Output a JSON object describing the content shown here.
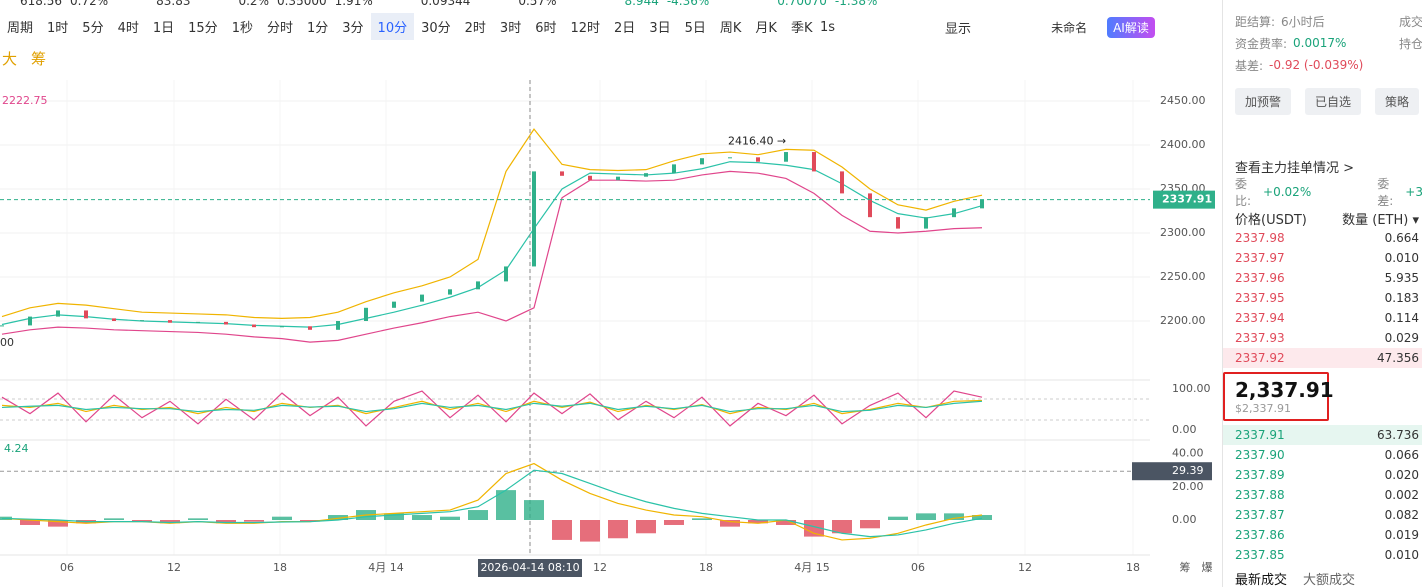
{
  "top_row": [
    "618.56",
    "0.72%",
    "83.83",
    "0.2%",
    "0.35000",
    "1.91%",
    "0.09344",
    "0.57%",
    "8.944",
    "-4.36%",
    "0.70070",
    "-1.38%"
  ],
  "toolbar": {
    "period": "周期",
    "intervals": [
      "1时",
      "5分",
      "4时",
      "1日",
      "15分",
      "1秒",
      "分时",
      "1分",
      "3分",
      "10分",
      "30分",
      "2时",
      "3时",
      "6时",
      "12时",
      "2日",
      "3日",
      "5日",
      "周K",
      "月K",
      "季K"
    ],
    "active": "10分",
    "speed": "1s",
    "display": "显示",
    "layout": "未命名",
    "ai": "AI解读"
  },
  "toolbar2": {
    "left": [
      "大",
      "筹"
    ]
  },
  "chart": {
    "band_label": "2222.75",
    "low_label": "00",
    "max_label": "2416.40 →",
    "max_value": 2416.4,
    "last_price": {
      "value": 2337.91,
      "label": "2337.91"
    },
    "price_ticks": [
      {
        "value": 2450,
        "label": "2450.00"
      },
      {
        "value": 2400,
        "label": "2400.00"
      },
      {
        "value": 2350,
        "label": "2350.00"
      },
      {
        "value": 2300,
        "label": "2300.00"
      },
      {
        "value": 2250,
        "label": "2250.00"
      },
      {
        "value": 2200,
        "label": "2200.00"
      }
    ],
    "upper": [
      2205,
      2215,
      2220,
      2218,
      2214,
      2210,
      2209,
      2208,
      2207,
      2204,
      2203,
      2204,
      2210,
      2222,
      2232,
      2240,
      2250,
      2270,
      2370,
      2418,
      2378,
      2372,
      2371,
      2372,
      2382,
      2390,
      2392,
      2389,
      2395,
      2394,
      2375,
      2350,
      2332,
      2326,
      2336,
      2343
    ],
    "middle": [
      2196,
      2203,
      2207,
      2205,
      2202,
      2200,
      2199,
      2198,
      2197,
      2195,
      2194,
      2193,
      2196,
      2203,
      2210,
      2218,
      2227,
      2238,
      2258,
      2305,
      2350,
      2368,
      2367,
      2366,
      2368,
      2373,
      2381,
      2380,
      2377,
      2372,
      2356,
      2337,
      2322,
      2317,
      2322,
      2331
    ],
    "lower": [
      2185,
      2190,
      2193,
      2192,
      2190,
      2189,
      2188,
      2187,
      2185,
      2182,
      2180,
      2176,
      2178,
      2185,
      2192,
      2198,
      2205,
      2210,
      2200,
      2215,
      2340,
      2360,
      2360,
      2359,
      2360,
      2366,
      2370,
      2368,
      2362,
      2345,
      2320,
      2302,
      2300,
      2302,
      2305,
      2306
    ],
    "closes": [
      2195,
      2205,
      2212,
      2203,
      2200,
      2201,
      2198,
      2199,
      2196,
      2193,
      2194,
      2190,
      2200,
      2215,
      2222,
      2230,
      2236,
      2245,
      2262,
      2370,
      2365,
      2360,
      2364,
      2368,
      2378,
      2385,
      2386,
      2381,
      2392,
      2370,
      2345,
      2318,
      2305,
      2318,
      2328,
      2338
    ],
    "osc_ticks": [
      {
        "value": 100,
        "label": "100.00"
      },
      {
        "value": 0,
        "label": "0.00"
      }
    ],
    "osc": [
      [
        80,
        40,
        90,
        20,
        85,
        30,
        70,
        15,
        75,
        25,
        90,
        35,
        80,
        10,
        70,
        95,
        30,
        85,
        20,
        90,
        40,
        88,
        25,
        70,
        30,
        80,
        10,
        65,
        35,
        85,
        15,
        60,
        90,
        30,
        95,
        80
      ],
      [
        60,
        55,
        65,
        45,
        60,
        50,
        55,
        40,
        55,
        45,
        65,
        55,
        60,
        40,
        55,
        70,
        50,
        65,
        45,
        70,
        55,
        68,
        45,
        60,
        50,
        62,
        40,
        55,
        50,
        65,
        40,
        50,
        65,
        55,
        70,
        72
      ],
      [
        55,
        58,
        60,
        50,
        55,
        52,
        52,
        45,
        50,
        48,
        60,
        56,
        58,
        45,
        52,
        65,
        55,
        60,
        50,
        65,
        58,
        65,
        50,
        58,
        52,
        60,
        45,
        52,
        52,
        60,
        45,
        48,
        60,
        55,
        65,
        70
      ]
    ],
    "macd_label": "4.24",
    "macd_tag": {
      "value": 29.39,
      "label": "29.39"
    },
    "macd_ticks": [
      {
        "value": 40,
        "label": "40.00"
      },
      {
        "value": 20,
        "label": "20.00"
      },
      {
        "value": 0,
        "label": "0.00"
      }
    ],
    "hist": [
      2,
      -3,
      -4,
      -2,
      1,
      -1,
      -2,
      1,
      -2,
      -1,
      2,
      -1,
      3,
      6,
      4,
      3,
      2,
      6,
      18,
      12,
      -12,
      -13,
      -11,
      -8,
      -3,
      1,
      -4,
      -2,
      -3,
      -10,
      -8,
      -5,
      2,
      4,
      4,
      3
    ],
    "dif": [
      1,
      0,
      -1,
      -2,
      -1,
      -1,
      -2,
      -1,
      -2,
      -2,
      -1,
      -1,
      1,
      3,
      4,
      5,
      6,
      12,
      28,
      34,
      24,
      16,
      10,
      6,
      3,
      2,
      -1,
      -2,
      0,
      -8,
      -12,
      -11,
      -8,
      -3,
      1,
      3
    ],
    "dea": [
      1,
      0.5,
      0,
      -1,
      -1,
      -1,
      -1.5,
      -1,
      -1.5,
      -1.5,
      -1.2,
      -1,
      0,
      2,
      3,
      4,
      5,
      8,
      18,
      30,
      28,
      22,
      16,
      11,
      7,
      4,
      2,
      0,
      0,
      -4,
      -8,
      -10,
      -9,
      -6,
      -2,
      1
    ],
    "x_labels": [
      "06",
      "12",
      "18",
      "4月 14",
      "2026-04-14 08:10",
      "12",
      "18",
      "4月 15",
      "06",
      "12",
      "18"
    ],
    "corner": [
      "筹",
      "爆"
    ]
  },
  "panel": {
    "info": [
      [
        "距结算:",
        "6小时后",
        "成交"
      ],
      [
        "资金费率:",
        "0.0017%",
        "持仓"
      ],
      [
        "基差:",
        "-0.92 (-0.039%)",
        ""
      ]
    ],
    "buttons": [
      "加预警",
      "已自选",
      "策略"
    ],
    "depth_link": "查看主力挂单情况 >",
    "ratio": [
      "委比:",
      "+0.02%",
      "委差:",
      "+3"
    ],
    "head": [
      "价格(USDT)",
      "数量 (ETH) ▾"
    ],
    "asks": [
      [
        "2337.98",
        "0.664"
      ],
      [
        "2337.97",
        "0.010"
      ],
      [
        "2337.96",
        "5.935"
      ],
      [
        "2337.95",
        "0.183"
      ],
      [
        "2337.94",
        "0.114"
      ],
      [
        "2337.93",
        "0.029"
      ],
      [
        "2337.92",
        "47.356"
      ]
    ],
    "price": "2,337.91",
    "price_usd": "$2,337.91",
    "bids": [
      [
        "2337.91",
        "63.736"
      ],
      [
        "2337.90",
        "0.066"
      ],
      [
        "2337.89",
        "0.020"
      ],
      [
        "2337.88",
        "0.002"
      ],
      [
        "2337.87",
        "0.082"
      ],
      [
        "2337.86",
        "0.019"
      ],
      [
        "2337.85",
        "0.010"
      ]
    ],
    "tabs": [
      "最新成交",
      "大额成交"
    ]
  }
}
